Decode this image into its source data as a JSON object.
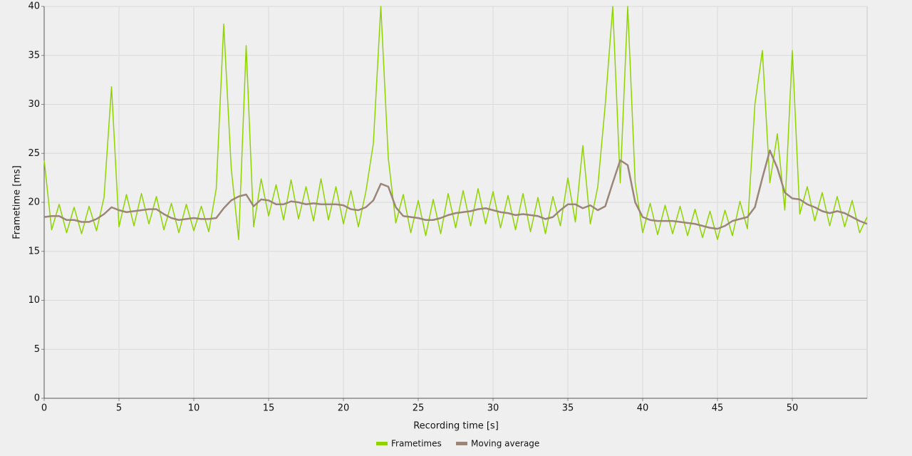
{
  "chart_data": {
    "type": "line",
    "xlabel": "Recording time [s]",
    "ylabel": "Frametime [ms]",
    "x": [
      0,
      0.5,
      1,
      1.5,
      2,
      2.5,
      3,
      3.5,
      4,
      4.5,
      5,
      5.5,
      6,
      6.5,
      7,
      7.5,
      8,
      8.5,
      9,
      9.5,
      10,
      10.5,
      11,
      11.5,
      12,
      12.5,
      13,
      13.5,
      14,
      14.5,
      15,
      15.5,
      16,
      16.5,
      17,
      17.5,
      18,
      18.5,
      19,
      19.5,
      20,
      20.5,
      21,
      21.5,
      22,
      22.5,
      23,
      23.5,
      24,
      24.5,
      25,
      25.5,
      26,
      26.5,
      27,
      27.5,
      28,
      28.5,
      29,
      29.5,
      30,
      30.5,
      31,
      31.5,
      32,
      32.5,
      33,
      33.5,
      34,
      34.5,
      35,
      35.5,
      36,
      36.5,
      37,
      37.5,
      38,
      38.5,
      39,
      39.5,
      40,
      40.5,
      41,
      41.5,
      42,
      42.5,
      43,
      43.5,
      44,
      44.5,
      45,
      45.5,
      46,
      46.5,
      47,
      47.5,
      48,
      48.5,
      49,
      49.5,
      50,
      50.5,
      51,
      51.5,
      52,
      52.5,
      53,
      53.5,
      54,
      54.5,
      55
    ],
    "series": [
      {
        "name": "Frametimes",
        "color": "#8fd400",
        "values": [
          24.3,
          17.2,
          19.8,
          16.9,
          19.5,
          16.8,
          19.6,
          17.1,
          20.5,
          31.8,
          17.5,
          20.8,
          17.6,
          20.9,
          17.8,
          20.6,
          17.2,
          19.9,
          16.9,
          19.8,
          17.1,
          19.6,
          17.0,
          21.4,
          38.2,
          23.5,
          16.2,
          36,
          17.5,
          22.4,
          18.6,
          21.8,
          18.2,
          22.3,
          18.3,
          21.6,
          18.1,
          22.4,
          18.2,
          21.6,
          17.8,
          21.2,
          17.5,
          21.1,
          26,
          40,
          24.5,
          17.9,
          20.8,
          16.9,
          20.2,
          16.6,
          20.3,
          16.8,
          20.9,
          17.4,
          21.2,
          17.6,
          21.4,
          17.8,
          21.1,
          17.4,
          20.7,
          17.2,
          20.9,
          17.0,
          20.5,
          16.8,
          20.6,
          17.6,
          22.5,
          18,
          25.8,
          17.8,
          21.6,
          30,
          40,
          22,
          40,
          22,
          16.9,
          19.9,
          16.7,
          19.7,
          16.8,
          19.6,
          16.6,
          19.3,
          16.4,
          19.1,
          16.2,
          19.2,
          16.6,
          20.1,
          17.3,
          30,
          35.5,
          22,
          27,
          19.2,
          35.5,
          18.8,
          21.6,
          18.1,
          21,
          17.6,
          20.6,
          17.5,
          20.2,
          16.9,
          18.5
        ]
      },
      {
        "name": "Moving average",
        "color": "#9b8579",
        "values": [
          18.5,
          18.6,
          18.6,
          18.2,
          18.2,
          18,
          18,
          18.3,
          18.8,
          19.5,
          19.2,
          19,
          19.1,
          19.2,
          19.3,
          19.3,
          18.8,
          18.4,
          18.2,
          18.3,
          18.4,
          18.3,
          18.3,
          18.4,
          19.4,
          20.2,
          20.6,
          20.8,
          19.6,
          20.3,
          20.2,
          19.8,
          19.8,
          20.1,
          20,
          19.8,
          19.9,
          19.8,
          19.8,
          19.8,
          19.7,
          19.3,
          19.2,
          19.5,
          20.2,
          21.9,
          21.6,
          19.5,
          18.6,
          18.5,
          18.4,
          18.2,
          18.2,
          18.4,
          18.7,
          18.9,
          19,
          19.1,
          19.3,
          19.4,
          19.2,
          19,
          18.9,
          18.7,
          18.8,
          18.7,
          18.6,
          18.3,
          18.5,
          19.2,
          19.8,
          19.8,
          19.4,
          19.7,
          19.2,
          19.6,
          22,
          24.3,
          23.8,
          20,
          18.5,
          18.2,
          18.1,
          18.1,
          18.1,
          18,
          17.9,
          17.8,
          17.6,
          17.4,
          17.3,
          17.6,
          18.1,
          18.3,
          18.5,
          19.5,
          22.5,
          25.3,
          23.5,
          21,
          20.4,
          20.3,
          19.8,
          19.5,
          19.1,
          18.9,
          19.1,
          18.9,
          18.5,
          18.1,
          17.8
        ]
      }
    ],
    "xlim": [
      0,
      55
    ],
    "xticks": [
      0,
      5,
      10,
      15,
      20,
      25,
      30,
      35,
      40,
      45,
      50
    ],
    "ylim": [
      0,
      40
    ],
    "yticks": [
      0,
      5,
      10,
      15,
      20,
      25,
      30,
      35,
      40
    ],
    "grid": true,
    "legend": "bottom"
  }
}
